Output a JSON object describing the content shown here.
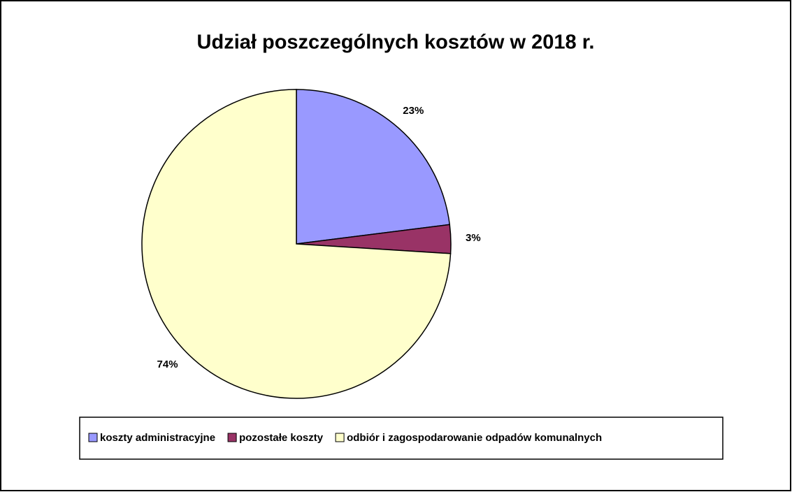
{
  "chart_data": {
    "type": "pie",
    "title": "Udział poszczególnych kosztów w 2018 r.",
    "categories": [
      "koszty administracyjne",
      "pozostałe koszty",
      "odbiór i zagospodarowanie odpadów komunalnych"
    ],
    "values": [
      23,
      3,
      74
    ],
    "value_labels": [
      "23%",
      "3%",
      "74%"
    ],
    "colors": [
      "#9999ff",
      "#993366",
      "#ffffcc"
    ],
    "legend": "bottom"
  }
}
